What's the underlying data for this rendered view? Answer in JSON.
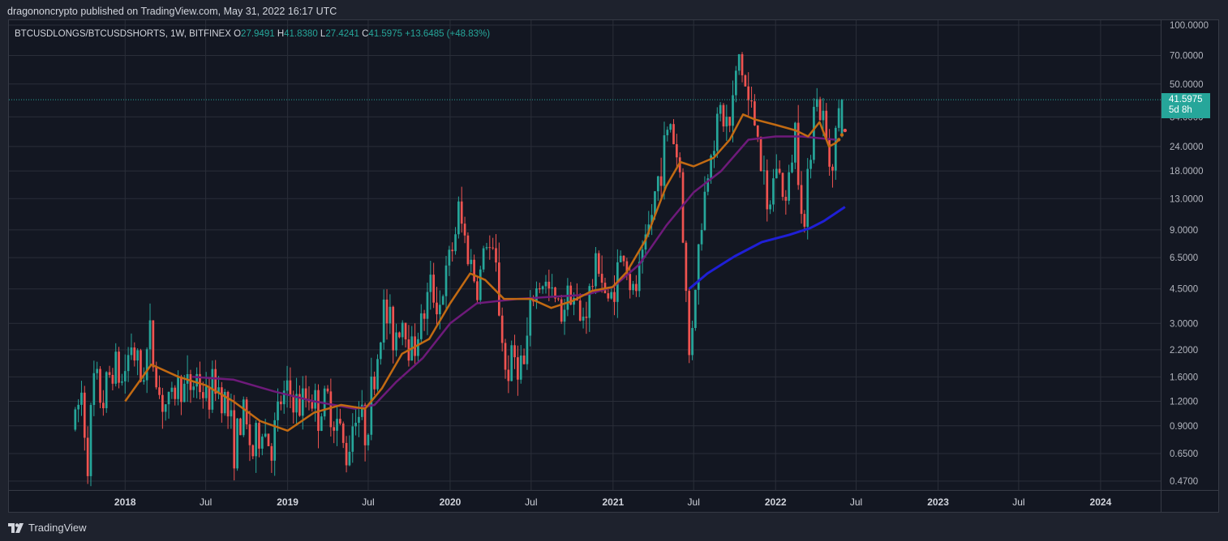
{
  "publisher_line": "dragononcrypto published on TradingView.com, May 31, 2022 16:17 UTC",
  "legend": {
    "symbol": "BTCUSDLONGS/BTCUSDSHORTS, 1W, BITFINEX",
    "o_label": "O",
    "o": "27.9491",
    "h_label": "H",
    "h": "41.8380",
    "l_label": "L",
    "l": "27.4241",
    "c_label": "C",
    "c": "41.5975",
    "change": "+13.6485 (+48.83%)"
  },
  "last_price": {
    "value": "41.5975",
    "countdown": "5d 8h"
  },
  "brand": "TradingView",
  "colors": {
    "up": "#26a69a",
    "down": "#ef5350",
    "ma_fast": "#c26a12",
    "ma_slow": "#6e1a7a",
    "ma_long": "#1f1fd6",
    "background": "#131722",
    "grid": "#2a2e39"
  },
  "chart_data": {
    "type": "candlestick",
    "scale": "log",
    "ylim": [
      0.42,
      100
    ],
    "y_ticks": [
      "100.0000",
      "70.0000",
      "50.0000",
      "34.0000",
      "24.0000",
      "18.0000",
      "13.0000",
      "9.0000",
      "6.5000",
      "4.5000",
      "3.0000",
      "2.2000",
      "1.6000",
      "1.2000",
      "0.9000",
      "0.6500",
      "0.4700"
    ],
    "x_ticks": [
      "2018",
      "Jul",
      "2019",
      "Jul",
      "2020",
      "Jul",
      "2021",
      "Jul",
      "2022",
      "Jul",
      "2023",
      "Jul",
      "2024"
    ],
    "x_tick_dates": [
      "2018-01-01",
      "2018-07-01",
      "2019-01-01",
      "2019-07-01",
      "2020-01-01",
      "2020-07-01",
      "2021-01-01",
      "2021-07-01",
      "2022-01-01",
      "2022-07-01",
      "2023-01-01",
      "2023-07-01",
      "2024-01-01"
    ],
    "x_range": [
      "2017-04-15",
      "2024-05-15"
    ],
    "close_path": [
      [
        "2017-09-04",
        0.86
      ],
      [
        "2017-09-25",
        1.3
      ],
      [
        "2017-10-09",
        0.62
      ],
      [
        "2017-10-23",
        1.5
      ],
      [
        "2017-11-13",
        1.2
      ],
      [
        "2017-12-04",
        1.9
      ],
      [
        "2017-12-25",
        1.5
      ],
      [
        "2018-01-15",
        2.4
      ],
      [
        "2018-02-05",
        1.55
      ],
      [
        "2018-02-26",
        2.5
      ],
      [
        "2018-03-19",
        1.3
      ],
      [
        "2018-04-09",
        1.1
      ],
      [
        "2018-04-30",
        1.5
      ],
      [
        "2018-05-21",
        1.35
      ],
      [
        "2018-06-11",
        1.6
      ],
      [
        "2018-07-02",
        1.2
      ],
      [
        "2018-07-23",
        1.5
      ],
      [
        "2018-08-13",
        1.25
      ],
      [
        "2018-09-03",
        0.72
      ],
      [
        "2018-09-24",
        1.0
      ],
      [
        "2018-10-15",
        0.65
      ],
      [
        "2018-11-05",
        0.9
      ],
      [
        "2018-11-26",
        0.7
      ],
      [
        "2018-12-17",
        1.2
      ],
      [
        "2019-01-07",
        1.3
      ],
      [
        "2019-01-28",
        1.1
      ],
      [
        "2019-02-18",
        1.35
      ],
      [
        "2019-03-11",
        1.05
      ],
      [
        "2019-04-01",
        1.2
      ],
      [
        "2019-04-22",
        0.95
      ],
      [
        "2019-05-13",
        0.62
      ],
      [
        "2019-06-03",
        1.15
      ],
      [
        "2019-06-24",
        0.85
      ],
      [
        "2019-07-15",
        1.6
      ],
      [
        "2019-08-05",
        3.5
      ],
      [
        "2019-08-26",
        2.6
      ],
      [
        "2019-09-16",
        3.2
      ],
      [
        "2019-10-07",
        2.2
      ],
      [
        "2019-10-28",
        3.0
      ],
      [
        "2019-11-18",
        4.5
      ],
      [
        "2019-12-09",
        3.8
      ],
      [
        "2019-12-30",
        6.0
      ],
      [
        "2020-01-20",
        11.0
      ],
      [
        "2020-02-10",
        7.0
      ],
      [
        "2020-03-02",
        4.5
      ],
      [
        "2020-03-23",
        8.0
      ],
      [
        "2020-04-13",
        5.5
      ],
      [
        "2020-05-04",
        1.7
      ],
      [
        "2020-05-25",
        2.0
      ],
      [
        "2020-06-15",
        1.8
      ],
      [
        "2020-07-06",
        4.2
      ],
      [
        "2020-07-27",
        5.0
      ],
      [
        "2020-08-17",
        4.0
      ],
      [
        "2020-09-07",
        3.5
      ],
      [
        "2020-09-28",
        4.8
      ],
      [
        "2020-10-19",
        3.0
      ],
      [
        "2020-11-09",
        4.2
      ],
      [
        "2020-11-30",
        6.5
      ],
      [
        "2020-12-21",
        3.5
      ],
      [
        "2021-01-04",
        5.0
      ],
      [
        "2021-01-25",
        7.0
      ],
      [
        "2021-02-15",
        4.0
      ],
      [
        "2021-03-08",
        6.0
      ],
      [
        "2021-03-29",
        11.0
      ],
      [
        "2021-04-19",
        20.0
      ],
      [
        "2021-05-10",
        32.0
      ],
      [
        "2021-05-31",
        18.0
      ],
      [
        "2021-06-21",
        2.0
      ],
      [
        "2021-07-05",
        5.0
      ],
      [
        "2021-07-19",
        10.0
      ],
      [
        "2021-08-09",
        25.0
      ],
      [
        "2021-08-30",
        35.0
      ],
      [
        "2021-09-20",
        30.0
      ],
      [
        "2021-10-11",
        70.0
      ],
      [
        "2021-11-01",
        40.0
      ],
      [
        "2021-11-22",
        30.0
      ],
      [
        "2021-12-13",
        10.0
      ],
      [
        "2022-01-03",
        20.0
      ],
      [
        "2022-01-24",
        12.0
      ],
      [
        "2022-02-14",
        30.0
      ],
      [
        "2022-03-07",
        9.0
      ],
      [
        "2022-03-28",
        45.0
      ],
      [
        "2022-04-18",
        32.0
      ],
      [
        "2022-05-02",
        20.0
      ],
      [
        "2022-05-16",
        28.0
      ],
      [
        "2022-05-30",
        41.6
      ]
    ],
    "ma_fast": [
      [
        "2018-01-01",
        1.2
      ],
      [
        "2018-03-01",
        1.85
      ],
      [
        "2018-05-01",
        1.6
      ],
      [
        "2018-07-01",
        1.45
      ],
      [
        "2018-09-01",
        1.2
      ],
      [
        "2018-11-01",
        0.95
      ],
      [
        "2019-01-01",
        0.85
      ],
      [
        "2019-03-01",
        1.05
      ],
      [
        "2019-05-01",
        1.15
      ],
      [
        "2019-06-24",
        1.1
      ],
      [
        "2019-08-01",
        1.4
      ],
      [
        "2019-09-15",
        2.1
      ],
      [
        "2019-11-15",
        2.5
      ],
      [
        "2020-01-01",
        3.8
      ],
      [
        "2020-02-15",
        5.4
      ],
      [
        "2020-03-20",
        5.0
      ],
      [
        "2020-05-01",
        4.0
      ],
      [
        "2020-07-01",
        4.0
      ],
      [
        "2020-08-15",
        3.6
      ],
      [
        "2020-10-01",
        3.9
      ],
      [
        "2020-11-15",
        4.4
      ],
      [
        "2020-12-31",
        4.6
      ],
      [
        "2021-02-01",
        5.5
      ],
      [
        "2021-03-15",
        8.0
      ],
      [
        "2021-04-30",
        15.0
      ],
      [
        "2021-06-01",
        20.0
      ],
      [
        "2021-07-01",
        19.0
      ],
      [
        "2021-08-15",
        21.0
      ],
      [
        "2021-09-20",
        26.0
      ],
      [
        "2021-10-20",
        35.0
      ],
      [
        "2021-11-15",
        33.0
      ],
      [
        "2021-12-31",
        31.0
      ],
      [
        "2022-02-15",
        29.0
      ],
      [
        "2022-03-15",
        27.0
      ],
      [
        "2022-04-10",
        32.0
      ],
      [
        "2022-05-01",
        24.0
      ],
      [
        "2022-05-16",
        25.0
      ],
      [
        "2022-05-23",
        26.0
      ]
    ],
    "ma_fast_dots": [
      [
        "2022-05-23",
        26.0
      ],
      [
        "2022-05-30",
        27.5
      ],
      [
        "2022-06-06",
        29.0
      ]
    ],
    "ma_slow": [
      [
        "2018-06-01",
        1.6
      ],
      [
        "2018-09-01",
        1.55
      ],
      [
        "2018-12-01",
        1.35
      ],
      [
        "2019-03-01",
        1.2
      ],
      [
        "2019-06-01",
        1.1
      ],
      [
        "2019-07-15",
        1.15
      ],
      [
        "2019-09-01",
        1.5
      ],
      [
        "2019-11-01",
        2.0
      ],
      [
        "2020-01-01",
        3.0
      ],
      [
        "2020-03-01",
        3.8
      ],
      [
        "2020-06-01",
        4.0
      ],
      [
        "2020-08-15",
        4.1
      ],
      [
        "2020-11-01",
        4.2
      ],
      [
        "2021-01-01",
        4.6
      ],
      [
        "2021-03-01",
        6.0
      ],
      [
        "2021-05-01",
        9.5
      ],
      [
        "2021-07-01",
        14.0
      ],
      [
        "2021-09-01",
        18.0
      ],
      [
        "2021-11-01",
        26.0
      ],
      [
        "2022-01-01",
        27.0
      ],
      [
        "2022-03-01",
        27.0
      ],
      [
        "2022-05-16",
        26.0
      ]
    ],
    "ma_long": [
      [
        "2021-06-21",
        4.5
      ],
      [
        "2021-08-01",
        5.4
      ],
      [
        "2021-10-01",
        6.6
      ],
      [
        "2021-12-01",
        7.8
      ],
      [
        "2022-02-01",
        8.5
      ],
      [
        "2022-03-20",
        9.2
      ],
      [
        "2022-04-20",
        10.0
      ],
      [
        "2022-06-06",
        11.8
      ]
    ]
  }
}
